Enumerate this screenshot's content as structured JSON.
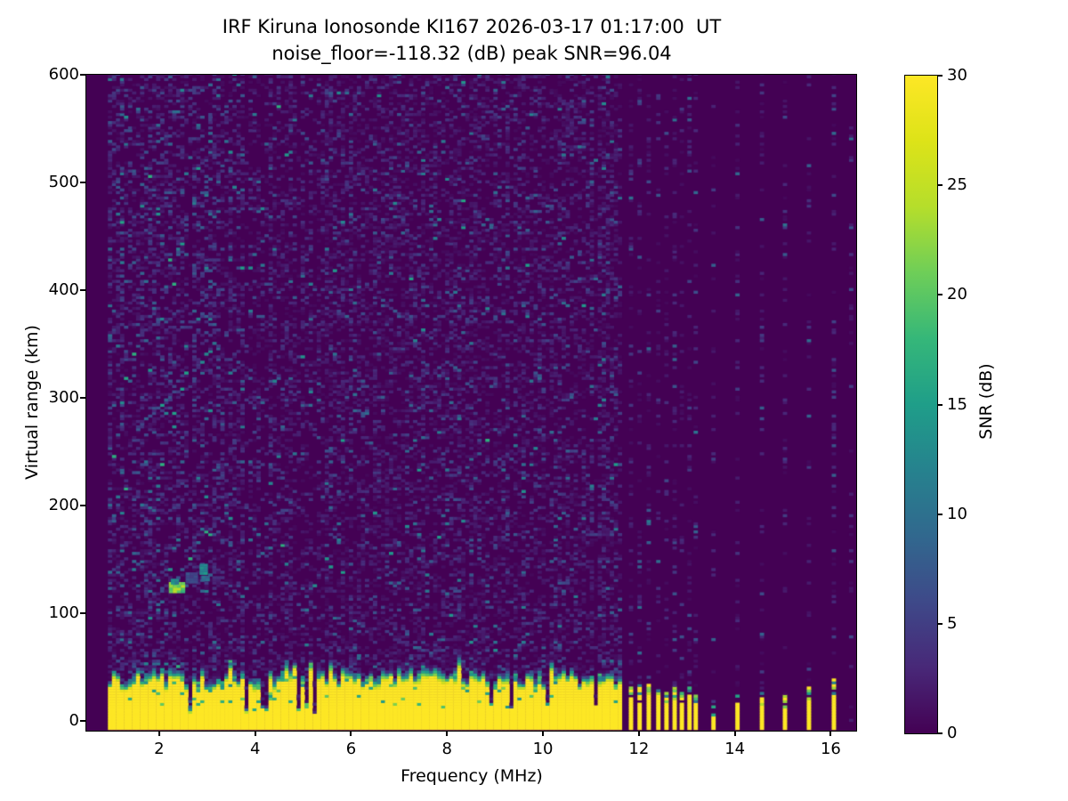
{
  "title": {
    "line1": "IRF Kiruna Ionosonde KI167 2026-03-17 01:17:00  UT",
    "line2": "noise_floor=-118.32 (dB) peak SNR=96.04"
  },
  "colors": {
    "background": "#ffffff",
    "axis": "#000000",
    "colormap_min": "#440154",
    "colormap_max": "#fde725"
  },
  "chart_data": {
    "type": "heatmap",
    "title": "IRF Kiruna Ionosonde KI167 2026-03-17 01:17:00  UT",
    "subtitle": "noise_floor=-118.32 (dB) peak SNR=96.04",
    "xlabel": "Frequency (MHz)",
    "ylabel": "Virtual range (km)",
    "xlim": [
      0.48,
      16.53
    ],
    "ylim": [
      -9,
      600
    ],
    "x_ticks": [
      2,
      4,
      6,
      8,
      10,
      12,
      14,
      16
    ],
    "y_ticks": [
      0,
      100,
      200,
      300,
      400,
      500,
      600
    ],
    "grid": false,
    "colorbar": {
      "label": "SNR (dB)",
      "vmin": 0,
      "vmax": 30,
      "ticks": [
        0,
        5,
        10,
        15,
        20,
        25,
        30
      ]
    },
    "colormap": {
      "name": "viridis",
      "stops": [
        [
          0.0,
          "#440154"
        ],
        [
          0.1,
          "#482878"
        ],
        [
          0.2,
          "#3e4989"
        ],
        [
          0.3,
          "#31688e"
        ],
        [
          0.4,
          "#26828e"
        ],
        [
          0.5,
          "#1f9e89"
        ],
        [
          0.6,
          "#35b779"
        ],
        [
          0.7,
          "#6ece58"
        ],
        [
          0.8,
          "#b5de2b"
        ],
        [
          0.9,
          "#dde318"
        ],
        [
          1.0,
          "#fde725"
        ]
      ]
    },
    "heatmap": {
      "seed": 167,
      "f_data_min": 0.93,
      "f_cont_max": 11.62,
      "f_step": 0.0837,
      "range_step_km": 2.5,
      "range_data_min_km": -8,
      "noise": {
        "density": 0.5,
        "mean_db": 1.9,
        "low_freq_boost_below_mhz": 3.2,
        "low_freq_gain": 1.35,
        "max_db": 17
      },
      "ground_band": {
        "top_km_min": 26,
        "top_km_max": 40,
        "fringe_km": 10,
        "notch_probability": 0.08,
        "saturated_db": 30
      },
      "echoes": [
        {
          "f0": 2.2,
          "f1": 2.48,
          "r0": 119,
          "r1": 127,
          "snr": 21
        },
        {
          "f0": 2.24,
          "f1": 2.4,
          "r0": 127,
          "r1": 131,
          "snr": 13
        },
        {
          "f0": 2.55,
          "f1": 2.8,
          "r0": 128,
          "r1": 138,
          "snr": 6
        },
        {
          "f0": 2.84,
          "f1": 2.99,
          "r0": 136,
          "r1": 146,
          "snr": 13
        },
        {
          "f0": 2.88,
          "f1": 2.98,
          "r0": 130,
          "r1": 134,
          "snr": 9
        }
      ],
      "sparse_frequencies": [
        {
          "f": 11.79,
          "top_km": 32,
          "strength": 1.0
        },
        {
          "f": 11.97,
          "top_km": 30,
          "strength": 0.9
        },
        {
          "f": 12.16,
          "top_km": 34,
          "strength": 1.0
        },
        {
          "f": 12.36,
          "top_km": 30,
          "strength": 0.95
        },
        {
          "f": 12.53,
          "top_km": 28,
          "strength": 0.9
        },
        {
          "f": 12.7,
          "top_km": 30,
          "strength": 0.95
        },
        {
          "f": 12.85,
          "top_km": 26,
          "strength": 0.85
        },
        {
          "f": 13.01,
          "top_km": 30,
          "strength": 0.9
        },
        {
          "f": 13.14,
          "top_km": 24,
          "strength": 0.8
        },
        {
          "f": 13.51,
          "top_km": 13,
          "strength": 0.45
        },
        {
          "f": 14.01,
          "top_km": 28,
          "strength": 0.85
        },
        {
          "f": 14.52,
          "top_km": 26,
          "strength": 0.8
        },
        {
          "f": 15.0,
          "top_km": 24,
          "strength": 0.75
        },
        {
          "f": 15.5,
          "top_km": 30,
          "strength": 0.85
        },
        {
          "f": 16.02,
          "top_km": 40,
          "strength": 1.0
        },
        {
          "f": 16.38,
          "top_km": 0,
          "strength": 0.25
        }
      ]
    }
  }
}
